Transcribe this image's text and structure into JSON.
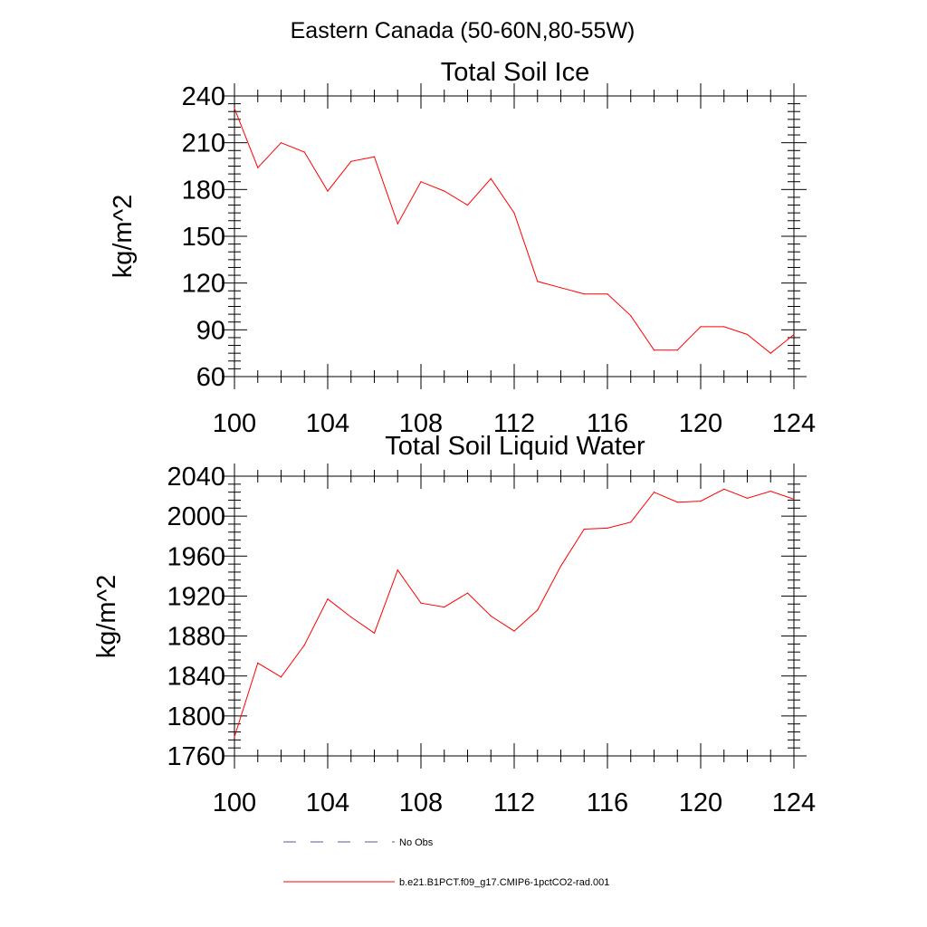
{
  "figure": {
    "suptitle": "Eastern Canada (50-60N,80-55W)"
  },
  "chart_data": [
    {
      "type": "line",
      "title": "Total Soil Ice",
      "xlabel": "",
      "ylabel": "kg/m^2",
      "xlim": [
        100,
        124
      ],
      "ylim": [
        60,
        240
      ],
      "xticks": [
        100,
        104,
        108,
        112,
        116,
        120,
        124
      ],
      "yticks": [
        60,
        90,
        120,
        150,
        180,
        210,
        240
      ],
      "grid": false,
      "x": [
        100,
        101,
        102,
        103,
        104,
        105,
        106,
        107,
        108,
        109,
        110,
        111,
        112,
        113,
        114,
        115,
        116,
        117,
        118,
        119,
        120,
        121,
        122,
        123,
        124
      ],
      "series": [
        {
          "name": "b.e21.B1PCT.f09_g17.CMIP6-1pctCO2-rad.001",
          "color": "#ff0000",
          "values": [
            232,
            194,
            210,
            204,
            179,
            198,
            201,
            158,
            185,
            179,
            170,
            187,
            165,
            121,
            117,
            113,
            113,
            99,
            77,
            77,
            92,
            92,
            87,
            75,
            87
          ]
        }
      ]
    },
    {
      "type": "line",
      "title": "Total Soil Liquid Water",
      "xlabel": "",
      "ylabel": "kg/m^2",
      "xlim": [
        100,
        124
      ],
      "ylim": [
        1760,
        2040
      ],
      "xticks": [
        100,
        104,
        108,
        112,
        116,
        120,
        124
      ],
      "yticks": [
        1760,
        1800,
        1840,
        1880,
        1920,
        1960,
        2000,
        2040
      ],
      "grid": false,
      "x": [
        100,
        101,
        102,
        103,
        104,
        105,
        106,
        107,
        108,
        109,
        110,
        111,
        112,
        113,
        114,
        115,
        116,
        117,
        118,
        119,
        120,
        121,
        122,
        123,
        124
      ],
      "series": [
        {
          "name": "b.e21.B1PCT.f09_g17.CMIP6-1pctCO2-rad.001",
          "color": "#ff0000",
          "values": [
            1779,
            1853,
            1839,
            1871,
            1917,
            1899,
            1883,
            1946,
            1913,
            1909,
            1923,
            1900,
            1885,
            1906,
            1950,
            1987,
            1988,
            1994,
            2024,
            2014,
            2015,
            2027,
            2018,
            2025,
            2017
          ]
        }
      ]
    }
  ],
  "legend": {
    "placement": "bottom",
    "entries": [
      {
        "label": "No Obs",
        "style": "dashed",
        "color": "#5a5a8a"
      },
      {
        "label": "b.e21.B1PCT.f09_g17.CMIP6-1pctCO2-rad.001",
        "style": "solid",
        "color": "#ff0000"
      }
    ]
  }
}
